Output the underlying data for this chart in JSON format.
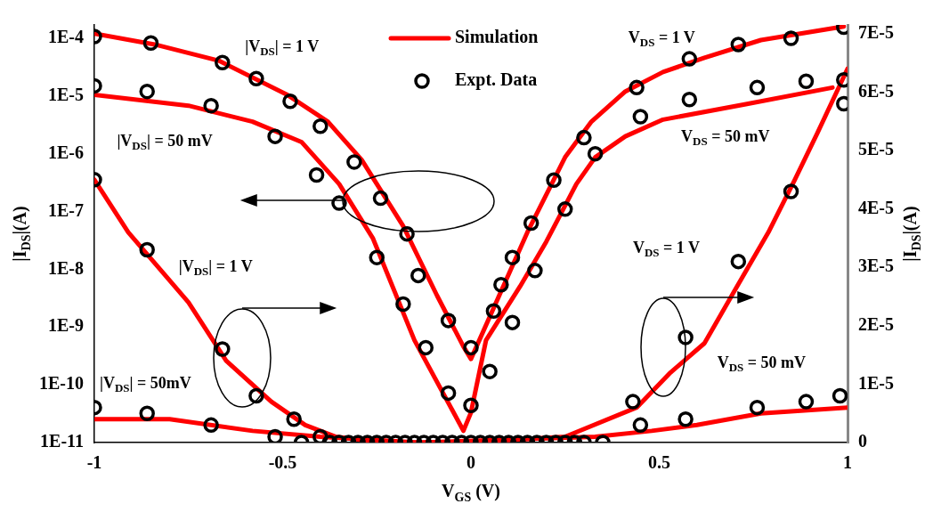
{
  "chart_data": {
    "type": "line",
    "xlabel": "V$_{GS}$ (V)",
    "ylabel": "|I$_{DS}$|(A)",
    "y2label": "|I$_{DS}$|(A)",
    "xlim": [
      -1,
      1
    ],
    "xticks": [
      -1,
      -0.5,
      0,
      0.5,
      1
    ],
    "ylim": [
      1e-11,
      0.00017
    ],
    "log": "y",
    "yticks": [
      {
        "value": 1e-11,
        "label": "1E-11"
      },
      {
        "value": 1e-10,
        "label": "1E-10"
      },
      {
        "value": 1e-09,
        "label": "1E-9"
      },
      {
        "value": 1e-08,
        "label": "1E-8"
      },
      {
        "value": 1e-07,
        "label": "1E-7"
      },
      {
        "value": 1e-06,
        "label": "1E-6"
      },
      {
        "value": 1e-05,
        "label": "1E-5"
      },
      {
        "value": 0.0001,
        "label": "1E-4"
      }
    ],
    "y2lim": [
      0,
      7.15e-05
    ],
    "y2ticks": [
      {
        "value": 0,
        "label": "0"
      },
      {
        "value": 1e-05,
        "label": "1E-5"
      },
      {
        "value": 2e-05,
        "label": "2E-5"
      },
      {
        "value": 3e-05,
        "label": "3E-5"
      },
      {
        "value": 4e-05,
        "label": "4E-5"
      },
      {
        "value": 5e-05,
        "label": "5E-5"
      },
      {
        "value": 6e-05,
        "label": "6E-5"
      },
      {
        "value": 7e-05,
        "label": "7E-5"
      }
    ],
    "legend": "top",
    "series": [
      {
        "name": "Simulation",
        "type": "line",
        "axis": "y",
        "color": "#ff0000",
        "marker": "none",
        "x": [
          -1,
          -0.84,
          -0.67,
          -0.49,
          -0.38,
          -0.29,
          -0.18,
          -0.09,
          -0.02,
          0,
          0.15,
          0.25,
          0.32,
          0.41,
          0.51,
          0.62,
          0.77,
          0.99
        ],
        "values": [
          0.00012,
          7.8e-05,
          4.1e-05,
          1.07e-05,
          3.6e-06,
          7.8e-07,
          5.6e-08,
          3.5e-09,
          4.6e-10,
          2.8e-10,
          4.4e-08,
          8.7e-07,
          3.6e-06,
          1.2e-05,
          2.6e-05,
          4.6e-05,
          9.3e-05,
          0.00016
        ]
      },
      {
        "type": "line",
        "axis": "y",
        "color": "#ff0000",
        "marker": "none",
        "x": [
          -1,
          -0.75,
          -0.58,
          -0.45,
          -0.35,
          -0.26,
          -0.15,
          -0.02,
          0,
          0.04,
          0.13,
          0.2,
          0.28,
          0.33,
          0.41,
          0.51,
          0.73,
          0.96
        ],
        "values": [
          1.05e-05,
          6.8e-06,
          3.6e-06,
          1.6e-06,
          3e-07,
          3.4e-08,
          5.9e-10,
          1.6e-11,
          3.3e-11,
          5.9e-10,
          5e-09,
          3e-08,
          3e-07,
          8.7e-07,
          2e-06,
          3.9e-06,
          7.2e-06,
          1.4e-05
        ]
      },
      {
        "type": "line",
        "axis": "y2",
        "color": "#ff0000",
        "marker": "none",
        "x": [
          -1,
          -0.91,
          -0.75,
          -0.65,
          -0.53,
          -0.44,
          -0.36,
          -0.23,
          -0.02,
          0.25,
          0.44,
          0.53,
          0.62,
          0.7,
          0.79,
          0.86,
          0.92,
          1
        ],
        "values": [
          4.5e-05,
          3.6e-05,
          2.4e-05,
          1.4e-05,
          7e-06,
          3e-06,
          1e-06,
          0,
          0,
          1e-06,
          6e-06,
          1.2e-05,
          1.7e-05,
          2.6e-05,
          3.6e-05,
          4.5e-05,
          5.3e-05,
          6.4e-05
        ]
      },
      {
        "type": "line",
        "axis": "y2",
        "color": "#ff0000",
        "marker": "none",
        "x": [
          -1,
          -0.8,
          -0.58,
          -0.4,
          -0.14,
          0.33,
          0.48,
          0.6,
          0.77,
          1
        ],
        "values": [
          4e-06,
          4e-06,
          2e-06,
          1e-06,
          0,
          1e-06,
          2e-06,
          3e-06,
          5e-06,
          6e-06
        ]
      },
      {
        "name": "Expt. Data",
        "type": "scatter",
        "axis": "y",
        "color": "#000000",
        "marker": "circle",
        "x": [
          -1,
          -0.85,
          -0.66,
          -0.57,
          -0.48,
          -0.4,
          -0.31,
          -0.24,
          -0.17,
          -0.14,
          -0.06,
          0,
          0.06,
          0.08,
          0.11,
          0.16,
          0.22,
          0.3,
          0.44,
          0.58,
          0.71,
          0.85,
          0.99
        ],
        "values": [
          0.000107,
          8.3e-05,
          3.8e-05,
          2e-05,
          8.1e-06,
          3e-06,
          7.2e-07,
          1.7e-07,
          4.1e-08,
          7.8e-09,
          1.3e-09,
          4.4e-10,
          1.9e-09,
          5.4e-09,
          1.6e-08,
          6.3e-08,
          3.5e-07,
          1.9e-06,
          1.4e-05,
          4.4e-05,
          7.8e-05,
          0.0001,
          0.000155
        ]
      },
      {
        "type": "scatter",
        "axis": "y",
        "color": "#000000",
        "marker": "circle",
        "x": [
          -1,
          -0.86,
          -0.69,
          -0.52,
          -0.41,
          -0.35,
          -0.25,
          -0.18,
          -0.12,
          -0.06,
          0,
          0.05,
          0.11,
          0.17,
          0.25,
          0.33,
          0.45,
          0.58,
          0.76,
          0.89,
          0.99
        ],
        "values": [
          1.5e-05,
          1.2e-05,
          6.8e-06,
          2e-06,
          4.3e-07,
          1.4e-07,
          1.6e-08,
          2.5e-09,
          4.4e-10,
          7.2e-11,
          4.4e-11,
          1.7e-10,
          1.2e-09,
          9.5e-09,
          1.1e-07,
          1e-06,
          4.4e-06,
          8.7e-06,
          1.4e-05,
          1.8e-05,
          1.9e-05
        ]
      },
      {
        "type": "scatter",
        "axis": "y2",
        "color": "#000000",
        "marker": "circle",
        "x": [
          -1,
          -0.86,
          -0.66,
          -0.57,
          -0.47,
          -0.4,
          -0.35,
          -0.3,
          -0.25,
          -0.2,
          -0.15,
          -0.1,
          -0.05,
          0,
          0.05,
          0.1,
          0.15,
          0.2,
          0.25,
          0.3,
          0.43,
          0.57,
          0.71,
          0.85,
          0.99
        ],
        "values": [
          4.5e-05,
          3.3e-05,
          1.6e-05,
          8e-06,
          4e-06,
          1e-06,
          0,
          0,
          0,
          0,
          0,
          0,
          0,
          0,
          0,
          0,
          0,
          0,
          0,
          0,
          7e-06,
          1.8e-05,
          3.1e-05,
          4.3e-05,
          5.8e-05
        ]
      },
      {
        "type": "scatter",
        "axis": "y2",
        "color": "#000000",
        "marker": "circle",
        "x": [
          -1,
          -0.86,
          -0.69,
          -0.52,
          -0.45,
          -0.375,
          -0.325,
          -0.275,
          -0.225,
          -0.175,
          -0.125,
          -0.075,
          -0.025,
          0.025,
          0.075,
          0.125,
          0.175,
          0.225,
          0.275,
          0.35,
          0.45,
          0.57,
          0.76,
          0.89,
          0.98
        ],
        "values": [
          6e-06,
          5e-06,
          3e-06,
          1e-06,
          0,
          0,
          0,
          0,
          0,
          0,
          0,
          0,
          0,
          0,
          0,
          0,
          0,
          0,
          0,
          0,
          3e-06,
          4e-06,
          6e-06,
          7e-06,
          8e-06
        ]
      }
    ],
    "annotations": [
      "|V$_{DS}$| = 1 V",
      "|V$_{DS}$| = 50 mV",
      "|V$_{DS}$| = 1 V",
      "|V$_{DS}$| = 50mV",
      "V$_{DS}$ = 1 V",
      "V$_{DS}$ = 50 mV",
      "V$_{DS}$ = 1 V",
      "V$_{DS}$ = 50 mV"
    ]
  }
}
